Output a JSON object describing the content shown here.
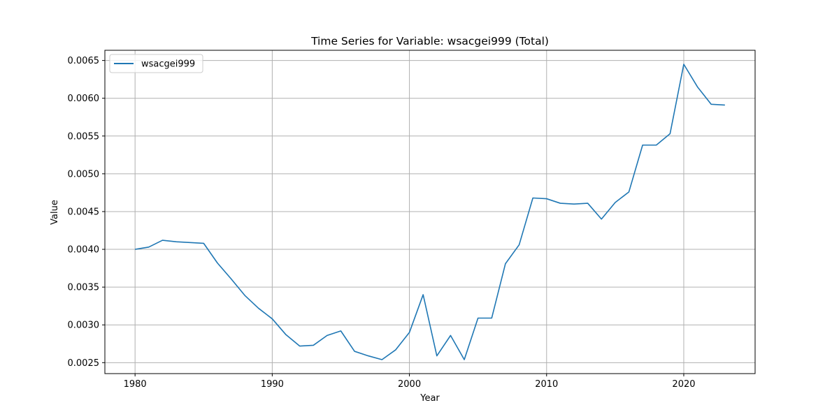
{
  "chart_data": {
    "type": "line",
    "title": "Time Series for Variable: wsacgei999 (Total)",
    "xlabel": "Year",
    "ylabel": "Value",
    "xlim": [
      1977.8,
      2025.2
    ],
    "ylim": [
      0.002355,
      0.006635
    ],
    "xticks": [
      1980,
      1990,
      2000,
      2010,
      2020
    ],
    "yticks": [
      0.0025,
      0.003,
      0.0035,
      0.004,
      0.0045,
      0.005,
      0.0055,
      0.006,
      0.0065
    ],
    "ytick_labels": [
      "0.0025",
      "0.0030",
      "0.0035",
      "0.0040",
      "0.0045",
      "0.0050",
      "0.0055",
      "0.0060",
      "0.0065"
    ],
    "grid": true,
    "legend_position": "upper-left",
    "series": [
      {
        "name": "wsacgei999",
        "color": "#1f77b4",
        "x": [
          1980,
          1981,
          1982,
          1983,
          1984,
          1985,
          1986,
          1987,
          1988,
          1989,
          1990,
          1991,
          1992,
          1993,
          1994,
          1995,
          1996,
          1997,
          1998,
          1999,
          2000,
          2001,
          2002,
          2003,
          2004,
          2005,
          2006,
          2007,
          2008,
          2009,
          2010,
          2011,
          2012,
          2013,
          2014,
          2015,
          2016,
          2017,
          2018,
          2019,
          2020,
          2021,
          2022,
          2023
        ],
        "y": [
          0.004,
          0.00403,
          0.00412,
          0.0041,
          0.00409,
          0.00408,
          0.00382,
          0.00361,
          0.00339,
          0.00322,
          0.00308,
          0.00287,
          0.00272,
          0.00273,
          0.00286,
          0.00292,
          0.00265,
          0.00259,
          0.00254,
          0.00267,
          0.0029,
          0.0034,
          0.00259,
          0.00286,
          0.00254,
          0.00309,
          0.00309,
          0.00381,
          0.00406,
          0.00468,
          0.00467,
          0.00461,
          0.0046,
          0.00461,
          0.0044,
          0.00462,
          0.00476,
          0.00538,
          0.00538,
          0.00553,
          0.00645,
          0.00615,
          0.00592,
          0.00591
        ]
      }
    ]
  }
}
